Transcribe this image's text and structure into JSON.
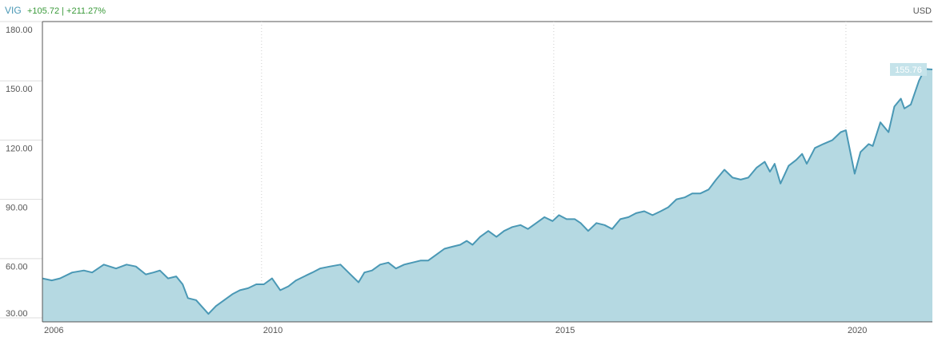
{
  "chart_data": {
    "type": "area",
    "series": [
      {
        "name": "VIG",
        "color": "#4a98b5",
        "fill": "#b5d9e2",
        "x": [
          2006.25,
          2006.41,
          2006.55,
          2006.76,
          2006.96,
          2007.1,
          2007.3,
          2007.51,
          2007.69,
          2007.85,
          2008.02,
          2008.15,
          2008.26,
          2008.4,
          2008.54,
          2008.65,
          2008.74,
          2008.88,
          2009.09,
          2009.22,
          2009.36,
          2009.5,
          2009.63,
          2009.77,
          2009.91,
          2010.04,
          2010.18,
          2010.32,
          2010.46,
          2010.59,
          2010.73,
          2010.87,
          2011.0,
          2011.17,
          2011.35,
          2011.52,
          2011.66,
          2011.76,
          2011.89,
          2012.03,
          2012.17,
          2012.3,
          2012.44,
          2012.58,
          2012.72,
          2012.85,
          2012.99,
          2013.13,
          2013.26,
          2013.4,
          2013.51,
          2013.61,
          2013.74,
          2013.88,
          2014.02,
          2014.15,
          2014.29,
          2014.43,
          2014.56,
          2014.7,
          2014.84,
          2014.98,
          2015.09,
          2015.22,
          2015.36,
          2015.46,
          2015.59,
          2015.73,
          2015.87,
          2016.0,
          2016.14,
          2016.28,
          2016.41,
          2016.55,
          2016.69,
          2016.83,
          2016.96,
          2017.1,
          2017.24,
          2017.37,
          2017.51,
          2017.65,
          2017.78,
          2017.92,
          2018.06,
          2018.2,
          2018.33,
          2018.47,
          2018.61,
          2018.7,
          2018.78,
          2018.88,
          2019.02,
          2019.15,
          2019.25,
          2019.33,
          2019.47,
          2019.61,
          2019.77,
          2019.91,
          2020.0,
          2020.15,
          2020.25,
          2020.39,
          2020.46,
          2020.59,
          2020.73,
          2020.83,
          2020.94,
          2021.0,
          2021.11,
          2021.25,
          2021.35,
          2021.48
        ],
        "values": [
          50,
          49,
          50,
          53,
          54,
          53,
          57,
          55,
          57,
          56,
          52,
          53,
          54,
          50,
          51,
          47,
          40,
          39,
          32,
          36,
          39,
          42,
          44,
          45,
          47,
          47,
          50,
          44,
          46,
          49,
          51,
          53,
          55,
          56,
          57,
          52,
          48,
          53,
          54,
          57,
          58,
          55,
          57,
          58,
          59,
          59,
          62,
          65,
          66,
          67,
          69,
          67,
          71,
          74,
          71,
          74,
          76,
          77,
          75,
          78,
          81,
          79,
          82,
          80,
          80,
          78,
          74,
          78,
          77,
          75,
          80,
          81,
          83,
          84,
          82,
          84,
          86,
          90,
          91,
          93,
          93,
          95,
          100,
          105,
          101,
          100,
          101,
          106,
          109,
          104,
          108,
          98,
          107,
          110,
          113,
          108,
          116,
          118,
          120,
          124,
          125,
          103,
          114,
          118,
          117,
          129,
          124,
          137,
          141,
          136,
          138,
          150,
          156,
          155.76
        ]
      }
    ],
    "change": "+105.72 | +211.27%",
    "currency": "USD",
    "xlim": [
      2006.25,
      2021.48
    ],
    "xticks": [
      {
        "value": 2006.25,
        "label": "2006"
      },
      2010,
      2015,
      2020
    ],
    "ylim": [
      28,
      180
    ],
    "yticks": [
      {
        "value": 30,
        "label": "30.00"
      },
      {
        "value": 60,
        "label": "60.00"
      },
      {
        "value": 90,
        "label": "90.00"
      },
      {
        "value": 120,
        "label": "120.00"
      },
      {
        "value": 150,
        "label": "150.00"
      },
      {
        "value": 180,
        "label": "180.00"
      }
    ],
    "grid": "x"
  }
}
